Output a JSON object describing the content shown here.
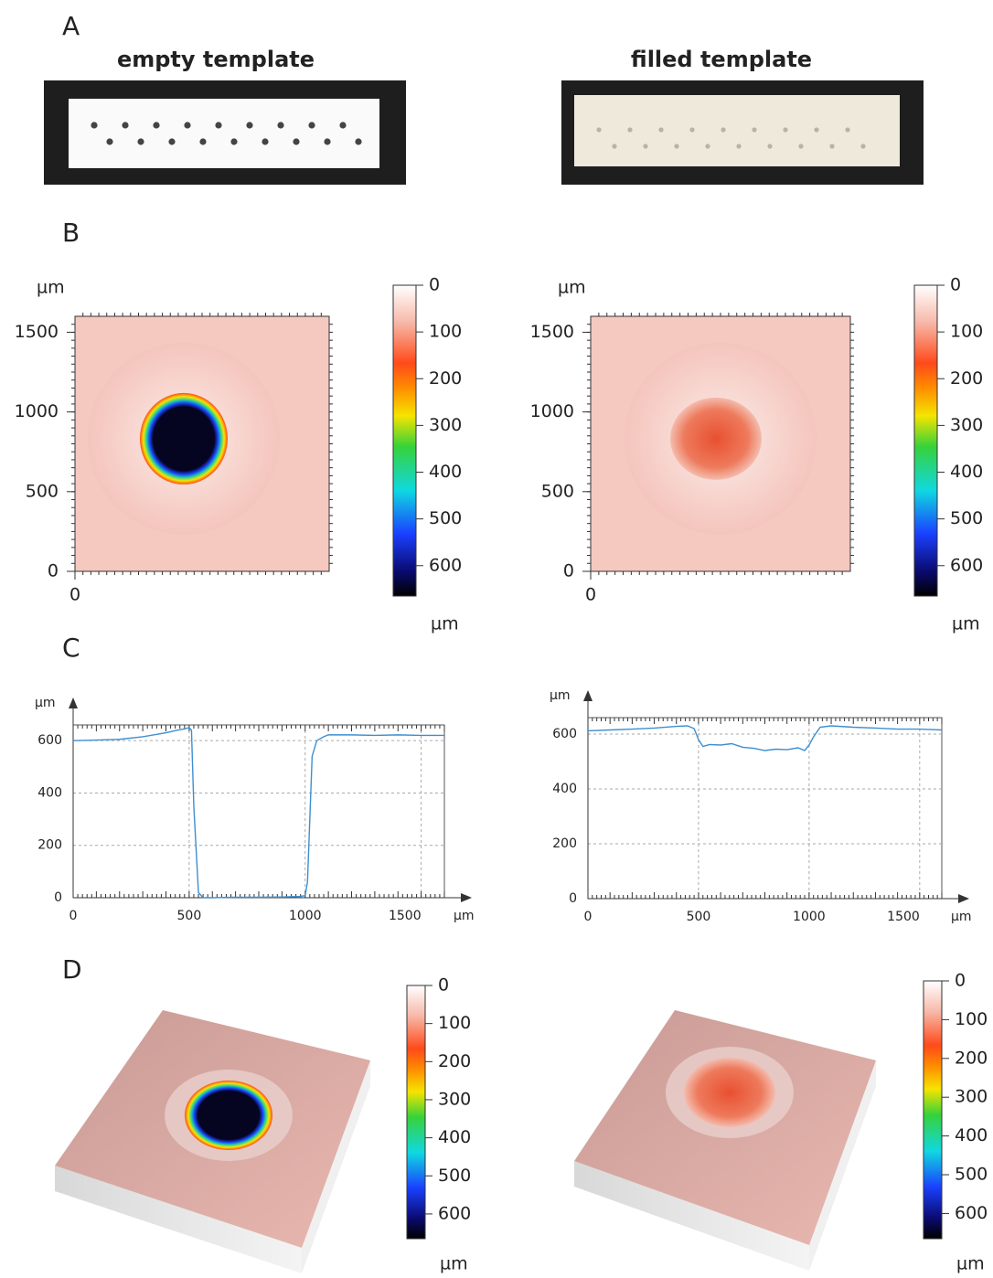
{
  "panel_labels": [
    "A",
    "B",
    "C",
    "D"
  ],
  "photos": [
    {
      "title": "empty template"
    },
    {
      "title": "filled template"
    }
  ],
  "maps": [
    {
      "y_unit": "µm",
      "xlim": [
        0,
        1600
      ],
      "ylim": [
        0,
        1600
      ],
      "xticks": [
        0
      ],
      "yticks": [
        0,
        500,
        1000,
        1500
      ],
      "colorbar": {
        "lim": [
          0,
          665
        ],
        "ticks": [
          0,
          100,
          200,
          300,
          400,
          500,
          600
        ],
        "unit": "µm"
      }
    },
    {
      "y_unit": "µm",
      "xlim": [
        0,
        1600
      ],
      "ylim": [
        0,
        1600
      ],
      "xticks": [
        0
      ],
      "yticks": [
        0,
        500,
        1000,
        1500
      ],
      "colorbar": {
        "lim": [
          0,
          665
        ],
        "ticks": [
          0,
          100,
          200,
          300,
          400,
          500,
          600
        ],
        "unit": "µm"
      }
    }
  ],
  "chart_data": [
    {
      "type": "line",
      "xlabel": "µm",
      "ylabel": "µm",
      "xlim": [
        0,
        1600
      ],
      "ylim": [
        0,
        660
      ],
      "xticks": [
        0,
        500,
        1000,
        1500
      ],
      "yticks": [
        0,
        200,
        400,
        600
      ],
      "grid": true,
      "color": "#3d8fd1",
      "x": [
        0,
        100,
        200,
        300,
        400,
        450,
        480,
        500,
        510,
        520,
        540,
        560,
        600,
        700,
        800,
        900,
        980,
        1000,
        1010,
        1020,
        1030,
        1050,
        1080,
        1100,
        1200,
        1300,
        1400,
        1500,
        1600
      ],
      "values": [
        600,
        602,
        605,
        615,
        630,
        640,
        645,
        650,
        640,
        350,
        20,
        0,
        0,
        2,
        2,
        3,
        5,
        8,
        60,
        300,
        540,
        600,
        615,
        622,
        622,
        620,
        622,
        620,
        620
      ]
    },
    {
      "type": "line",
      "xlabel": "µm",
      "ylabel": "µm",
      "xlim": [
        0,
        1600
      ],
      "ylim": [
        0,
        660
      ],
      "xticks": [
        0,
        500,
        1000,
        1500
      ],
      "yticks": [
        0,
        200,
        400,
        600
      ],
      "grid": true,
      "color": "#3d8fd1",
      "x": [
        0,
        100,
        200,
        300,
        400,
        450,
        480,
        500,
        520,
        550,
        600,
        650,
        700,
        750,
        800,
        850,
        900,
        950,
        980,
        1000,
        1020,
        1050,
        1100,
        1200,
        1300,
        1400,
        1500,
        1600
      ],
      "values": [
        612,
        615,
        618,
        622,
        628,
        630,
        620,
        580,
        555,
        562,
        560,
        565,
        552,
        548,
        540,
        545,
        543,
        550,
        540,
        560,
        590,
        625,
        630,
        625,
        622,
        618,
        618,
        615
      ]
    }
  ],
  "surfaces": [
    {
      "colorbar": {
        "lim": [
          0,
          665
        ],
        "ticks": [
          0,
          100,
          200,
          300,
          400,
          500,
          600
        ],
        "unit": "µm"
      }
    },
    {
      "colorbar": {
        "lim": [
          0,
          665
        ],
        "ticks": [
          0,
          100,
          200,
          300,
          400,
          500,
          600
        ],
        "unit": "µm"
      }
    }
  ]
}
